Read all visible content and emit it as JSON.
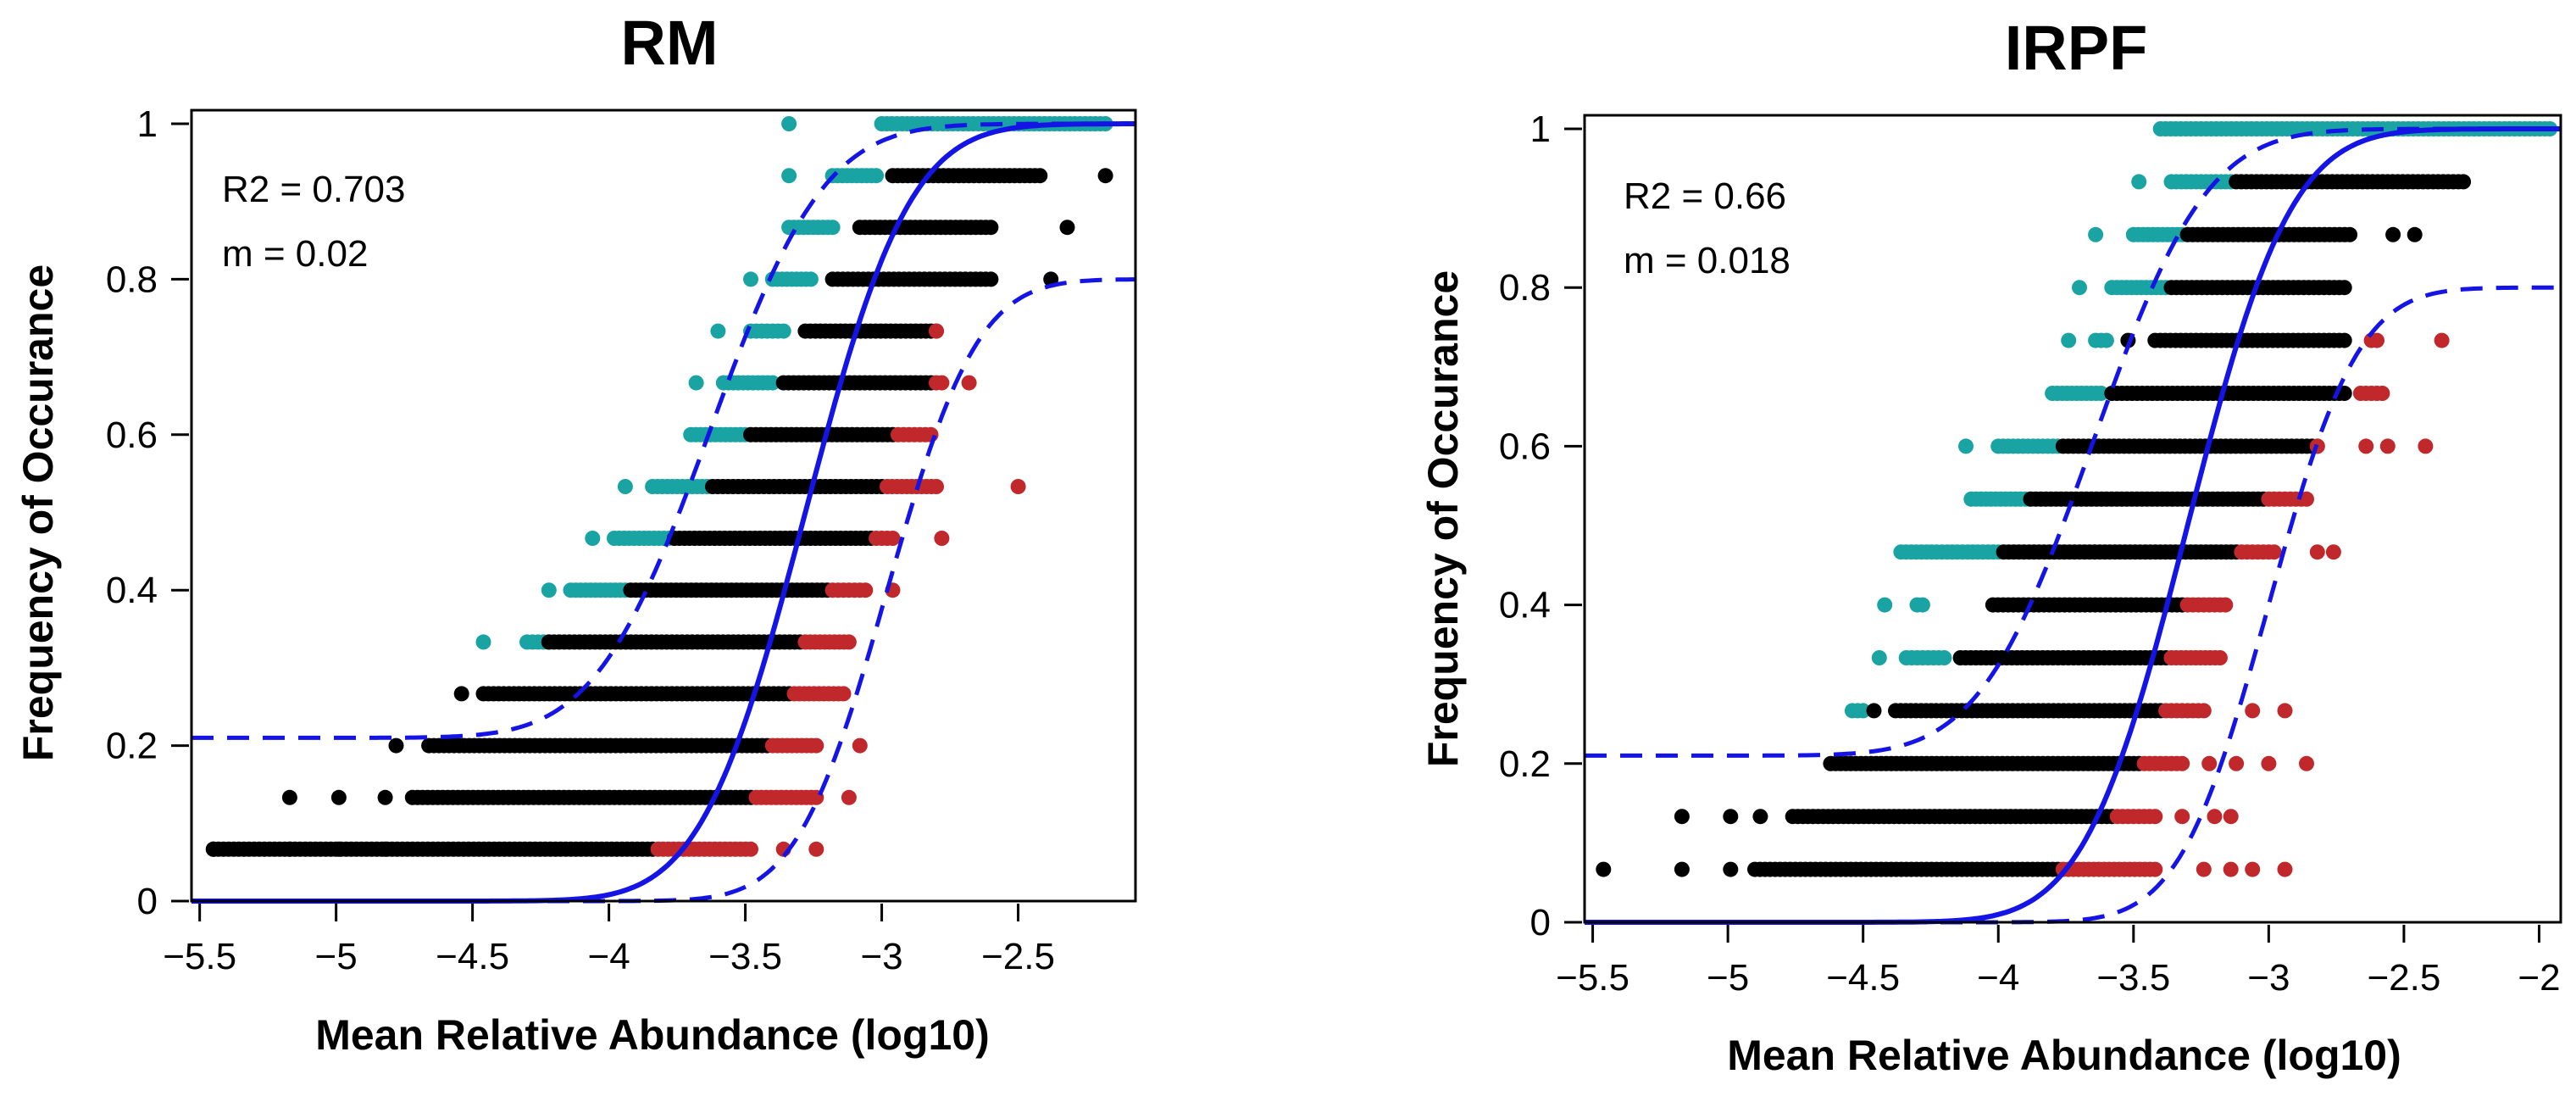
{
  "chart_data": [
    {
      "type": "scatter",
      "title": "RM",
      "xlabel": "Mean Relative Abundance (log10)",
      "ylabel": "Frequency of Occurance",
      "xlim": [
        -5.53,
        -2.07
      ],
      "ylim": [
        0,
        1
      ],
      "xticks": [
        -5.5,
        -5,
        -4.5,
        -4,
        -3.5,
        -3,
        -2.5
      ],
      "yticks": [
        0,
        0.2,
        0.4,
        0.6,
        0.8,
        1
      ],
      "annotations": [
        "R2 = 0.703",
        "m = 0.02"
      ],
      "grid": false,
      "colors": {
        "below": "#000000",
        "above": "#1aa3a3",
        "under": "#c0282b",
        "fit": "#1414e6"
      },
      "fit": {
        "m": 0.02,
        "n_detect": 15,
        "lower_limit": 0.0,
        "upper_limit": 0.8
      },
      "rows": [
        {
          "y": 0.0667,
          "xmin": -5.45,
          "xmax": -3.84,
          "black": [
            -5.45,
            -5.17,
            -4.99,
            -4.82
          ],
          "under": {
            "x0": -3.82,
            "x1": -3.48,
            "extra": [
              -3.36,
              -3.24
            ]
          }
        },
        {
          "y": 0.1333,
          "xmin": -4.72,
          "xmax": -3.48,
          "black": [
            -5.17,
            -4.99,
            -4.82
          ],
          "under": {
            "x0": -3.46,
            "x1": -3.24,
            "extra": [
              -3.12
            ]
          }
        },
        {
          "y": 0.2,
          "xmin": -4.66,
          "xmax": -3.42,
          "black": [
            -4.78
          ],
          "under": {
            "x0": -3.4,
            "x1": -3.24,
            "extra": [
              -3.08
            ]
          }
        },
        {
          "y": 0.2667,
          "xmin": -4.46,
          "xmax": -3.34,
          "black": [
            -4.54
          ],
          "under": {
            "x0": -3.32,
            "x1": -3.14,
            "extra": []
          }
        },
        {
          "y": 0.3333,
          "xmin": -4.22,
          "xmax": -3.3,
          "above": {
            "x0": -4.3,
            "x1": -4.22,
            "extra": [
              -4.46
            ]
          },
          "under": {
            "x0": -3.28,
            "x1": -3.12,
            "extra": []
          }
        },
        {
          "y": 0.4,
          "xmin": -3.92,
          "xmax": -3.2,
          "above": {
            "x0": -4.14,
            "x1": -3.94,
            "extra": [
              -4.22
            ]
          },
          "under": {
            "x0": -3.18,
            "x1": -3.06,
            "extra": [
              -2.96
            ]
          }
        },
        {
          "y": 0.4667,
          "xmin": -3.76,
          "xmax": -3.04,
          "above": {
            "x0": -3.98,
            "x1": -3.78,
            "extra": [
              -4.06
            ]
          },
          "under": {
            "x0": -3.02,
            "x1": -2.96,
            "extra": [
              -2.78
            ]
          }
        },
        {
          "y": 0.5333,
          "xmin": -3.62,
          "xmax": -3.0,
          "above": {
            "x0": -3.84,
            "x1": -3.64,
            "extra": [
              -3.94
            ]
          },
          "under": {
            "x0": -2.98,
            "x1": -2.8,
            "extra": [
              -2.5
            ]
          }
        },
        {
          "y": 0.6,
          "xmin": -3.48,
          "xmax": -2.96,
          "above": {
            "x0": -3.7,
            "x1": -3.5,
            "extra": []
          },
          "under": {
            "x0": -2.94,
            "x1": -2.82,
            "extra": []
          }
        },
        {
          "y": 0.6667,
          "xmin": -3.36,
          "xmax": -2.82,
          "above": {
            "x0": -3.58,
            "x1": -3.4,
            "extra": [
              -3.68
            ]
          },
          "under": {
            "x0": -2.8,
            "x1": -2.78,
            "extra": [
              -2.68
            ]
          }
        },
        {
          "y": 0.7333,
          "xmin": -3.28,
          "xmax": -2.82,
          "above": {
            "x0": -3.48,
            "x1": -3.36,
            "extra": [
              -3.6
            ]
          },
          "under": {
            "x0": -2.8,
            "x1": -2.8,
            "extra": []
          }
        },
        {
          "y": 0.8,
          "xmin": -3.18,
          "xmax": -2.6,
          "black": [
            -2.38
          ],
          "above": {
            "x0": -3.4,
            "x1": -3.26,
            "extra": [
              -3.48
            ]
          }
        },
        {
          "y": 0.8667,
          "xmin": -3.08,
          "xmax": -2.6,
          "black": [
            -2.32
          ],
          "above": {
            "x0": -3.34,
            "x1": -3.18,
            "extra": []
          }
        },
        {
          "y": 0.9333,
          "xmin": -2.96,
          "xmax": -2.42,
          "black": [
            -2.18
          ],
          "above": {
            "x0": -3.18,
            "x1": -3.02,
            "extra": [
              -3.34
            ]
          }
        },
        {
          "y": 1.0,
          "above": {
            "x0": -3.0,
            "x1": -2.18,
            "extra": [
              -3.34
            ]
          }
        }
      ]
    },
    {
      "type": "scatter",
      "title": "IRPF",
      "xlabel": "Mean Relative Abundance (log10)",
      "ylabel": "Frequency of Occurance",
      "xlim": [
        -5.53,
        -1.92
      ],
      "ylim": [
        0,
        1
      ],
      "xticks": [
        -5.5,
        -5,
        -4.5,
        -4,
        -3.5,
        -3,
        -2.5,
        -2
      ],
      "yticks": [
        0,
        0.2,
        0.4,
        0.6,
        0.8,
        1
      ],
      "annotations": [
        "R2 = 0.66",
        "m = 0.018"
      ],
      "grid": false,
      "colors": {
        "below": "#000000",
        "above": "#1aa3a3",
        "under": "#c0282b",
        "fit": "#1414e6"
      },
      "fit": {
        "m": 0.018,
        "n_detect": 15,
        "lower_limit": 0.0,
        "upper_limit": 0.8
      },
      "rows": [
        {
          "y": 0.0667,
          "xmin": -4.9,
          "xmax": -3.78,
          "black": [
            -5.46,
            -5.17,
            -4.99
          ],
          "under": {
            "x0": -3.76,
            "x1": -3.42,
            "extra": [
              -3.24,
              -3.14,
              -3.06,
              -2.94
            ]
          }
        },
        {
          "y": 0.1333,
          "xmin": -4.76,
          "xmax": -3.58,
          "black": [
            -5.17,
            -4.99,
            -4.88
          ],
          "under": {
            "x0": -3.56,
            "x1": -3.42,
            "extra": [
              -3.32,
              -3.2,
              -3.14
            ]
          }
        },
        {
          "y": 0.2,
          "xmin": -4.62,
          "xmax": -3.48,
          "under": {
            "x0": -3.46,
            "x1": -3.32,
            "extra": [
              -3.22,
              -3.12,
              -3.0,
              -2.86
            ]
          }
        },
        {
          "y": 0.2667,
          "xmin": -4.38,
          "xmax": -3.4,
          "black": [
            -4.46
          ],
          "above": {
            "x0": -4.54,
            "x1": -4.5,
            "extra": []
          },
          "under": {
            "x0": -3.38,
            "x1": -3.24,
            "extra": [
              -3.06,
              -2.94
            ]
          }
        },
        {
          "y": 0.3333,
          "xmin": -4.14,
          "xmax": -3.38,
          "above": {
            "x0": -4.34,
            "x1": -4.2,
            "extra": [
              -4.44
            ]
          },
          "under": {
            "x0": -3.36,
            "x1": -3.18,
            "extra": []
          }
        },
        {
          "y": 0.4,
          "xmin": -4.02,
          "xmax": -3.32,
          "above": {
            "x0": -4.3,
            "x1": -4.28,
            "extra": [
              -4.42
            ]
          },
          "under": {
            "x0": -3.3,
            "x1": -3.16,
            "extra": []
          }
        },
        {
          "y": 0.4667,
          "xmin": -3.98,
          "xmax": -3.12,
          "above": {
            "x0": -4.36,
            "x1": -4.0,
            "extra": []
          },
          "under": {
            "x0": -3.1,
            "x1": -2.98,
            "extra": [
              -2.82,
              -2.76
            ]
          }
        },
        {
          "y": 0.5333,
          "xmin": -3.88,
          "xmax": -3.02,
          "above": {
            "x0": -4.1,
            "x1": -3.9,
            "extra": []
          },
          "under": {
            "x0": -3.0,
            "x1": -2.86,
            "extra": []
          }
        },
        {
          "y": 0.6,
          "xmin": -3.76,
          "xmax": -2.84,
          "above": {
            "x0": -4.0,
            "x1": -3.78,
            "extra": [
              -4.12
            ]
          },
          "under": {
            "x0": -2.82,
            "x1": -2.82,
            "extra": [
              -2.64,
              -2.56,
              -2.42
            ]
          }
        },
        {
          "y": 0.6667,
          "xmin": -3.58,
          "xmax": -2.72,
          "above": {
            "x0": -3.8,
            "x1": -3.62,
            "extra": []
          },
          "under": {
            "x0": -2.66,
            "x1": -2.58,
            "extra": []
          }
        },
        {
          "y": 0.7333,
          "xmin": -3.42,
          "xmax": -2.72,
          "black": [
            -3.52
          ],
          "above": {
            "x0": -3.64,
            "x1": -3.6,
            "extra": [
              -3.74
            ]
          },
          "under": {
            "x0": -2.62,
            "x1": -2.6,
            "extra": [
              -2.36
            ]
          }
        },
        {
          "y": 0.8,
          "xmin": -3.36,
          "xmax": -2.72,
          "above": {
            "x0": -3.58,
            "x1": -3.38,
            "extra": [
              -3.7
            ]
          }
        },
        {
          "y": 0.8667,
          "xmin": -3.3,
          "xmax": -2.7,
          "black": [
            -2.54,
            -2.46
          ],
          "above": {
            "x0": -3.5,
            "x1": -3.32,
            "extra": [
              -3.64
            ]
          }
        },
        {
          "y": 0.9333,
          "xmin": -3.12,
          "xmax": -2.28,
          "above": {
            "x0": -3.36,
            "x1": -3.14,
            "extra": [
              -3.48
            ]
          }
        },
        {
          "y": 1.0,
          "above": {
            "x0": -3.4,
            "x1": -1.96,
            "extra": []
          }
        }
      ]
    }
  ]
}
